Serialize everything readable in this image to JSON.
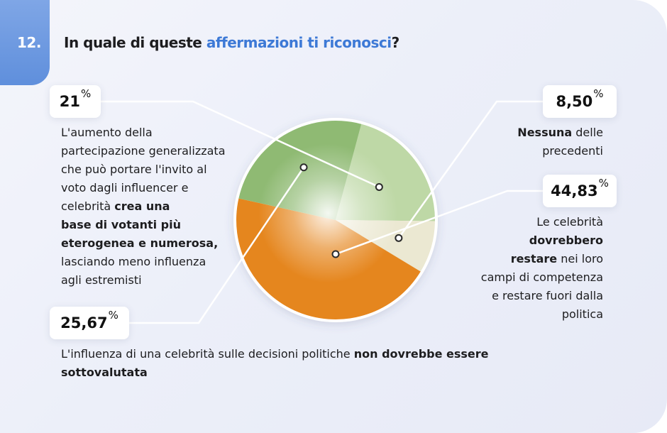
{
  "question": {
    "number": "12.",
    "title_prefix": "In quale di queste ",
    "title_highlight": "affermazioni ti riconosci",
    "title_suffix": "?"
  },
  "colors": {
    "accent": "#3d79d6",
    "slice_light_green": "#bed8a6",
    "slice_cream": "#ebe8d2",
    "slice_orange": "#e5861e",
    "slice_mid_green": "#8fba73"
  },
  "answers": [
    {
      "pct": "21",
      "text_lines": [
        {
          "parts": [
            {
              "t": "L'aumento della",
              "b": false
            }
          ]
        },
        {
          "parts": [
            {
              "t": "partecipazione generalizzata",
              "b": false
            }
          ]
        },
        {
          "parts": [
            {
              "t": "che può portare l'invito al",
              "b": false
            }
          ]
        },
        {
          "parts": [
            {
              "t": "voto dagli influencer e",
              "b": false
            }
          ]
        },
        {
          "parts": [
            {
              "t": "celebrità ",
              "b": false
            },
            {
              "t": "crea una",
              "b": true
            }
          ]
        },
        {
          "parts": [
            {
              "t": "base di votanti più",
              "b": true
            }
          ]
        },
        {
          "parts": [
            {
              "t": "eterogenea e numerosa,",
              "b": true
            }
          ]
        },
        {
          "parts": [
            {
              "t": "lasciando meno influenza",
              "b": false
            }
          ]
        },
        {
          "parts": [
            {
              "t": "agli estremisti",
              "b": false
            }
          ]
        }
      ]
    },
    {
      "pct": "8,50",
      "text_lines": [
        {
          "parts": [
            {
              "t": "Nessuna",
              "b": true
            },
            {
              "t": " delle",
              "b": false
            }
          ]
        },
        {
          "parts": [
            {
              "t": "precedenti",
              "b": false
            }
          ]
        }
      ]
    },
    {
      "pct": "44,83",
      "text_lines": [
        {
          "parts": [
            {
              "t": "Le celebrità",
              "b": false
            }
          ]
        },
        {
          "parts": [
            {
              "t": "dovrebbero",
              "b": true
            }
          ]
        },
        {
          "parts": [
            {
              "t": "restare",
              "b": true
            },
            {
              "t": " nei loro",
              "b": false
            }
          ]
        },
        {
          "parts": [
            {
              "t": "campi di competenza",
              "b": false
            }
          ]
        },
        {
          "parts": [
            {
              "t": "e restare fuori dalla",
              "b": false
            }
          ]
        },
        {
          "parts": [
            {
              "t": "politica",
              "b": false
            }
          ]
        }
      ]
    },
    {
      "pct": "25,67",
      "text_lines": [
        {
          "parts": [
            {
              "t": "L'influenza di una celebrità sulle decisioni politiche ",
              "b": false
            },
            {
              "t": "non dovrebbe essere",
              "b": true
            }
          ]
        },
        {
          "parts": [
            {
              "t": "sottovalutata",
              "b": true
            }
          ]
        }
      ]
    }
  ],
  "percent_sign": "%",
  "chart_data": {
    "type": "pie",
    "title": "In quale di queste affermazioni ti riconosci?",
    "slices": [
      {
        "label": "L'aumento della partecipazione generalizzata che può portare l'invito al voto dagli influencer e celebrità crea una base di votanti più eterogenea e numerosa, lasciando meno influenza agli estremisti",
        "value": 21,
        "display": "21%",
        "color": "#bed8a6"
      },
      {
        "label": "Nessuna delle precedenti",
        "value": 8.5,
        "display": "8,50%",
        "color": "#ebe8d2"
      },
      {
        "label": "Le celebrità dovrebbero restare nei loro campi di competenza e restare fuori dalla politica",
        "value": 44.83,
        "display": "44,83%",
        "color": "#e5861e"
      },
      {
        "label": "L'influenza di una celebrità sulle decisioni politiche non dovrebbe essere sottovalutata",
        "value": 25.67,
        "display": "25,67%",
        "color": "#8fba73"
      }
    ]
  }
}
